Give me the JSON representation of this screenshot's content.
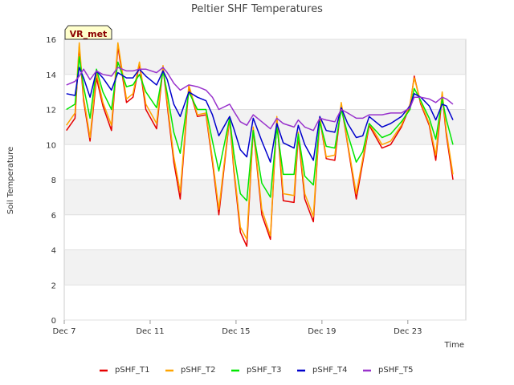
{
  "chart_data": {
    "type": "line",
    "title": "Peltier SHF Temperatures",
    "xlabel": "Time",
    "ylabel": "Soil Temperature",
    "badge": "VR_met",
    "ylim": [
      0,
      16
    ],
    "yticks": [
      0,
      2,
      4,
      6,
      8,
      10,
      12,
      14,
      16
    ],
    "xlim": [
      7,
      25.7
    ],
    "xticks": [
      {
        "day": 7,
        "label": "Dec 7"
      },
      {
        "day": 11,
        "label": "Dec 11"
      },
      {
        "day": 15,
        "label": "Dec 15"
      },
      {
        "day": 19,
        "label": "Dec 19"
      },
      {
        "day": 23,
        "label": "Dec 23"
      }
    ],
    "grid": true,
    "legend_position": "bottom",
    "x_days": [
      7.1,
      7.5,
      7.7,
      7.9,
      8.2,
      8.5,
      8.8,
      9.2,
      9.5,
      9.9,
      10.2,
      10.5,
      10.8,
      11.3,
      11.6,
      11.8,
      12.1,
      12.4,
      12.8,
      13.2,
      13.6,
      13.9,
      14.2,
      14.7,
      14.9,
      15.2,
      15.5,
      15.8,
      16.2,
      16.6,
      16.9,
      17.2,
      17.7,
      17.9,
      18.2,
      18.6,
      18.9,
      19.2,
      19.6,
      19.9,
      20.2,
      20.6,
      20.9,
      21.2,
      21.8,
      22.2,
      22.7,
      23.1,
      23.3,
      23.6,
      24.0,
      24.3,
      24.6,
      24.8,
      25.1
    ],
    "series": [
      {
        "name": "pSHF_T1",
        "color": "#e60000",
        "values": [
          10.8,
          11.5,
          15.6,
          12.5,
          10.2,
          13.8,
          12.2,
          10.8,
          15.6,
          12.4,
          12.7,
          14.6,
          12.0,
          10.9,
          14.4,
          12.2,
          9.0,
          6.9,
          13.3,
          11.6,
          11.7,
          9.0,
          6.0,
          11.5,
          8.5,
          5.0,
          4.2,
          10.9,
          6.0,
          4.6,
          11.5,
          6.8,
          6.7,
          10.5,
          6.9,
          5.6,
          11.5,
          9.2,
          9.1,
          12.3,
          10.0,
          6.9,
          9.0,
          11.1,
          9.8,
          10.0,
          11.0,
          12.2,
          13.9,
          12.3,
          11.1,
          9.1,
          12.8,
          10.5,
          8.0
        ]
      },
      {
        "name": "pSHF_T2",
        "color": "#ffa500",
        "values": [
          11.1,
          11.8,
          15.8,
          12.7,
          10.4,
          14.1,
          12.4,
          11.1,
          15.8,
          12.6,
          12.9,
          14.7,
          12.3,
          11.2,
          14.5,
          12.4,
          9.3,
          7.3,
          13.4,
          11.7,
          11.8,
          9.2,
          6.3,
          11.6,
          8.7,
          5.3,
          4.6,
          11.0,
          6.3,
          4.8,
          11.6,
          7.2,
          7.1,
          10.7,
          7.2,
          5.9,
          11.6,
          9.3,
          9.4,
          12.4,
          10.1,
          7.2,
          9.2,
          11.2,
          10.0,
          10.2,
          11.1,
          12.3,
          13.8,
          12.4,
          11.2,
          9.4,
          13.0,
          10.7,
          8.3
        ]
      },
      {
        "name": "pSHF_T3",
        "color": "#00e600",
        "values": [
          12.0,
          12.3,
          15.0,
          13.3,
          11.5,
          14.3,
          13.0,
          12.0,
          14.7,
          13.3,
          13.4,
          14.0,
          13.0,
          12.1,
          14.2,
          12.9,
          10.7,
          9.5,
          13.0,
          12.0,
          12.0,
          10.2,
          8.5,
          11.5,
          9.5,
          7.2,
          6.8,
          10.8,
          7.8,
          7.0,
          11.0,
          8.3,
          8.3,
          10.6,
          8.2,
          7.7,
          11.3,
          9.9,
          9.8,
          12.0,
          10.6,
          9.0,
          9.6,
          11.2,
          10.4,
          10.6,
          11.3,
          12.0,
          13.2,
          12.5,
          11.5,
          10.3,
          12.6,
          11.4,
          10.0
        ]
      },
      {
        "name": "pSHF_T4",
        "color": "#0000cc",
        "values": [
          12.9,
          12.8,
          14.4,
          13.8,
          12.7,
          14.2,
          13.8,
          13.1,
          14.1,
          13.8,
          13.8,
          14.3,
          13.9,
          13.4,
          14.2,
          13.7,
          12.3,
          11.6,
          13.0,
          12.7,
          12.5,
          11.7,
          10.5,
          11.6,
          10.9,
          9.7,
          9.3,
          11.5,
          10.2,
          9.0,
          11.2,
          10.1,
          9.8,
          11.1,
          10.0,
          9.1,
          11.6,
          10.8,
          10.7,
          12.1,
          11.2,
          10.4,
          10.5,
          11.6,
          11.0,
          11.2,
          11.6,
          12.2,
          12.9,
          12.7,
          12.2,
          11.4,
          12.3,
          12.2,
          11.4
        ]
      },
      {
        "name": "pSHF_T5",
        "color": "#9933cc",
        "values": [
          13.4,
          13.6,
          13.9,
          14.3,
          13.7,
          14.2,
          14.0,
          13.9,
          14.4,
          14.2,
          14.2,
          14.3,
          14.3,
          14.1,
          14.4,
          14.1,
          13.5,
          13.1,
          13.4,
          13.3,
          13.1,
          12.7,
          12.0,
          12.3,
          11.9,
          11.3,
          11.1,
          11.7,
          11.3,
          10.9,
          11.5,
          11.2,
          11.0,
          11.4,
          11.0,
          10.8,
          11.5,
          11.4,
          11.3,
          12.0,
          11.8,
          11.5,
          11.5,
          11.7,
          11.7,
          11.8,
          11.8,
          12.1,
          12.7,
          12.7,
          12.6,
          12.4,
          12.7,
          12.6,
          12.3
        ]
      }
    ]
  }
}
